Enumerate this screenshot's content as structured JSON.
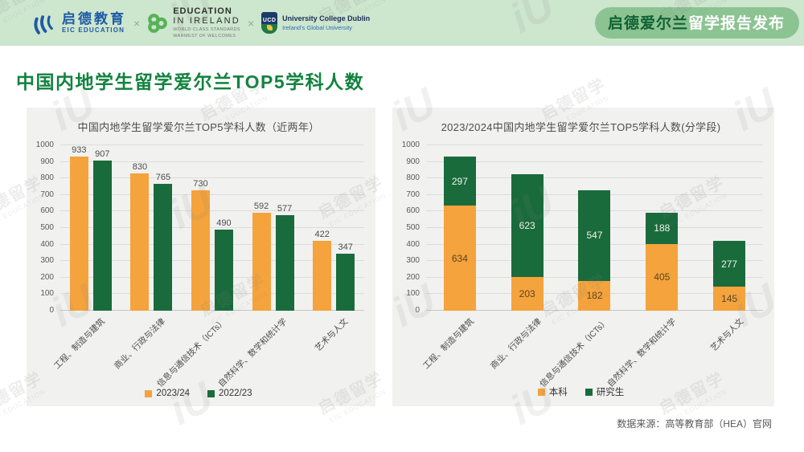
{
  "header": {
    "eic_logo": {
      "cn": "启德教育",
      "en": "EIC EDUCATION"
    },
    "separator": "×",
    "ei_logo": {
      "line1": "EDUCATION",
      "line2": "IN IRELAND",
      "sub1": "WORLD-CLASS STANDARDS",
      "sub2": "WARMEST OF WELCOMES"
    },
    "ucd_logo": {
      "abbr": "UCD",
      "name": "University College Dublin",
      "tagline": "Ireland's Global University"
    },
    "badge": {
      "strong": "启德爱尔兰",
      "rest": "留学报告发布"
    }
  },
  "page_title": "中国内地学生留学爱尔兰TOP5学科人数",
  "source_note": "数据来源：高等教育部（HEA）官网",
  "watermark": {
    "cn": "启德留学",
    "en": "EIC EDUCATION",
    "glyph": "iU"
  },
  "colors": {
    "orange": "#F5A33C",
    "green": "#1A6B3C",
    "header_bg": "#CDE6CE",
    "badge_bg": "#8CC392",
    "title_green": "#12833F",
    "panel_bg": "#F1F1F0"
  },
  "chart_data": [
    {
      "type": "bar",
      "stacked": false,
      "title": "中国内地学生留学爱尔兰TOP5学科人数（近两年）",
      "categories": [
        "工程、制造与建筑",
        "商业、行政与法律",
        "信息与通信技术（ICTs）",
        "自然科学、数学和统计学",
        "艺术与人文"
      ],
      "series": [
        {
          "name": "2023/24",
          "color": "orange",
          "values": [
            933,
            830,
            730,
            592,
            422
          ]
        },
        {
          "name": "2022/23",
          "color": "green",
          "values": [
            907,
            765,
            490,
            577,
            347
          ]
        }
      ],
      "ylim": [
        0,
        1000
      ],
      "ytick_step": 100,
      "grid": true,
      "legend_position": "bottom",
      "value_labels": "above"
    },
    {
      "type": "bar",
      "stacked": true,
      "title": "2023/2024中国内地学生留学爱尔兰TOP5学科人数(分学段)",
      "categories": [
        "工程、制造与建筑",
        "商业、行政与法律",
        "信息与通信技术（ICTs）",
        "自然科学、数学和统计学",
        "艺术与人文"
      ],
      "series": [
        {
          "name": "本科",
          "color": "orange",
          "values": [
            634,
            203,
            182,
            405,
            145
          ]
        },
        {
          "name": "研究生",
          "color": "green",
          "values": [
            297,
            623,
            547,
            188,
            277
          ]
        }
      ],
      "ylim": [
        0,
        1000
      ],
      "ytick_step": 100,
      "grid": true,
      "legend_position": "bottom",
      "value_labels": "inside"
    }
  ]
}
